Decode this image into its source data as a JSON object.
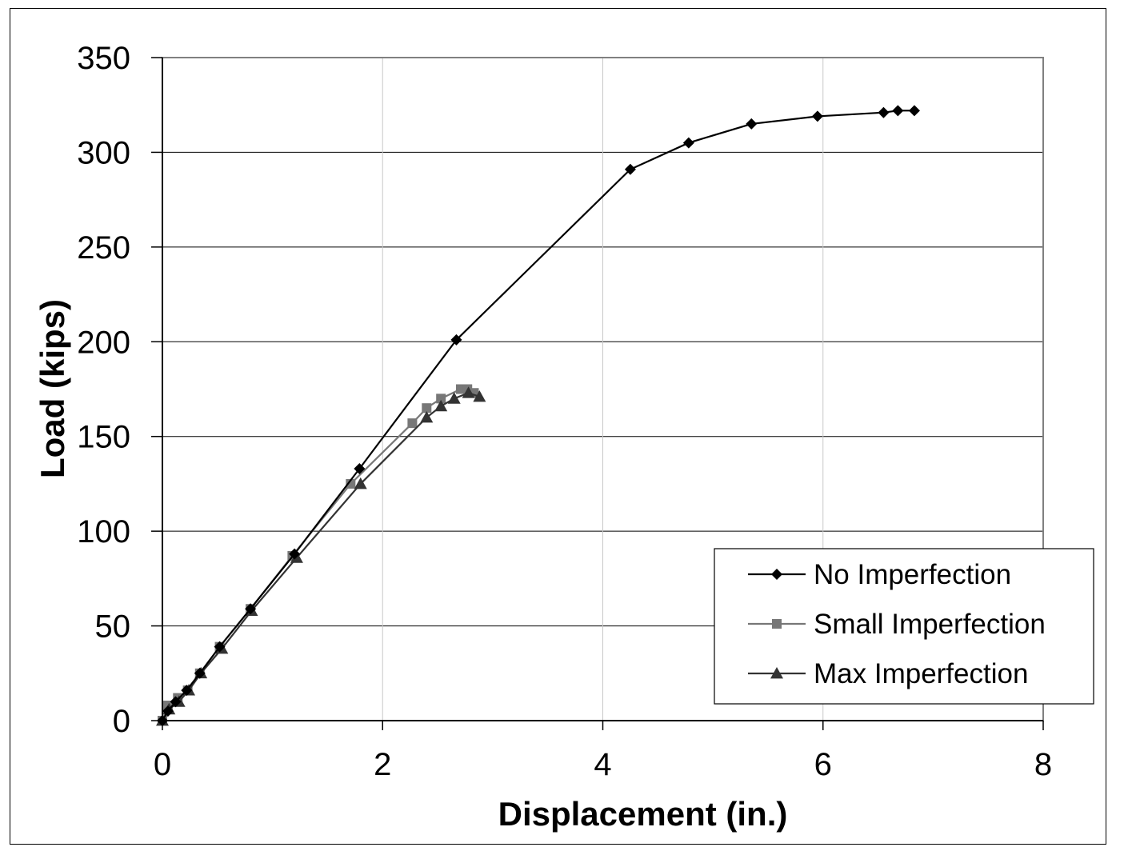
{
  "chart_data": {
    "type": "line",
    "title": "",
    "xlabel": "Displacement (in.)",
    "ylabel": "Load (kips)",
    "xlim": [
      0,
      8
    ],
    "ylim": [
      0,
      350
    ],
    "xticks": [
      0,
      2,
      4,
      6,
      8
    ],
    "yticks": [
      0,
      50,
      100,
      150,
      200,
      250,
      300,
      350
    ],
    "grid": true,
    "legend_position": "bottom-right",
    "series": [
      {
        "name": "No Imperfection",
        "marker": "diamond",
        "color": "#000000",
        "x": [
          0,
          0.05,
          0.12,
          0.22,
          0.34,
          0.52,
          0.8,
          1.2,
          1.79,
          2.67,
          4.25,
          4.78,
          5.35,
          5.95,
          6.55,
          6.68,
          6.83
        ],
        "y": [
          0,
          5,
          10,
          16,
          25,
          39,
          59,
          88,
          133,
          201,
          291,
          305,
          315,
          319,
          321,
          322,
          322
        ]
      },
      {
        "name": "Small Imperfection",
        "marker": "square",
        "color": "#777777",
        "x": [
          0,
          0.05,
          0.14,
          0.23,
          0.34,
          0.52,
          0.8,
          1.18,
          1.71,
          2.27,
          2.4,
          2.53,
          2.71,
          2.77,
          2.83
        ],
        "y": [
          0,
          8,
          12,
          16,
          25,
          39,
          59,
          87,
          125,
          157,
          165,
          170,
          175,
          175,
          173
        ]
      },
      {
        "name": "Max Imperfection",
        "marker": "triangle",
        "color": "#333333",
        "x": [
          0,
          0.06,
          0.15,
          0.24,
          0.35,
          0.54,
          0.81,
          1.22,
          1.8,
          2.4,
          2.53,
          2.65,
          2.78,
          2.88
        ],
        "y": [
          0,
          6,
          10,
          16,
          25,
          38,
          58,
          86,
          125,
          160,
          166,
          170,
          173,
          171
        ]
      }
    ]
  }
}
